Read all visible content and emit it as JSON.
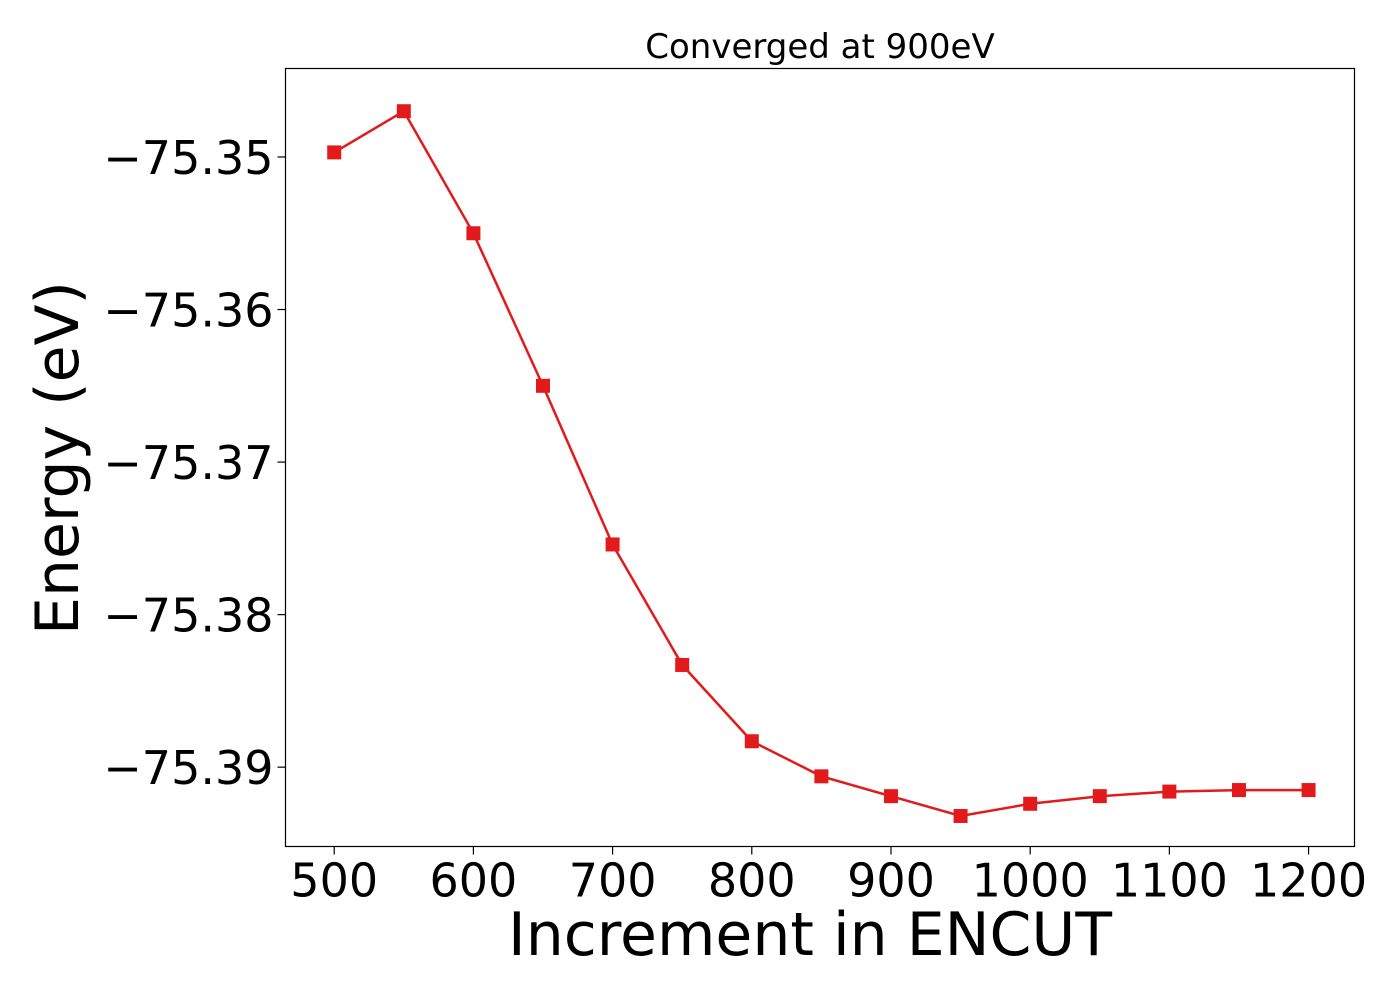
{
  "chart_data": {
    "type": "line",
    "title": "Converged at 900eV",
    "xlabel": "Increment in ENCUT",
    "ylabel": "Energy (eV)",
    "x": [
      500,
      550,
      600,
      650,
      700,
      750,
      800,
      850,
      900,
      950,
      1000,
      1050,
      1100,
      1150,
      1200
    ],
    "series": [
      {
        "values": [
          -75.3497,
          -75.347,
          -75.355,
          -75.365,
          -75.3754,
          -75.3833,
          -75.3883,
          -75.3906,
          -75.3919,
          -75.3932,
          -75.3924,
          -75.3919,
          -75.3916,
          -75.3915,
          -75.3915
        ],
        "color": "#e31a1c",
        "marker": "square"
      }
    ],
    "xticks": [
      "500",
      "600",
      "700",
      "800",
      "900",
      "1000",
      "1100",
      "1200"
    ],
    "yticks": [
      "−75.35",
      "−75.36",
      "−75.37",
      "−75.38",
      "−75.39"
    ],
    "xtick_values": [
      500,
      600,
      700,
      800,
      900,
      1000,
      1100,
      1200
    ],
    "ytick_values": [
      -75.35,
      -75.36,
      -75.37,
      -75.38,
      -75.39
    ],
    "xlim": [
      465,
      1233
    ],
    "ylim": [
      -75.3952,
      -75.3442
    ],
    "grid": false,
    "legend": "none"
  }
}
